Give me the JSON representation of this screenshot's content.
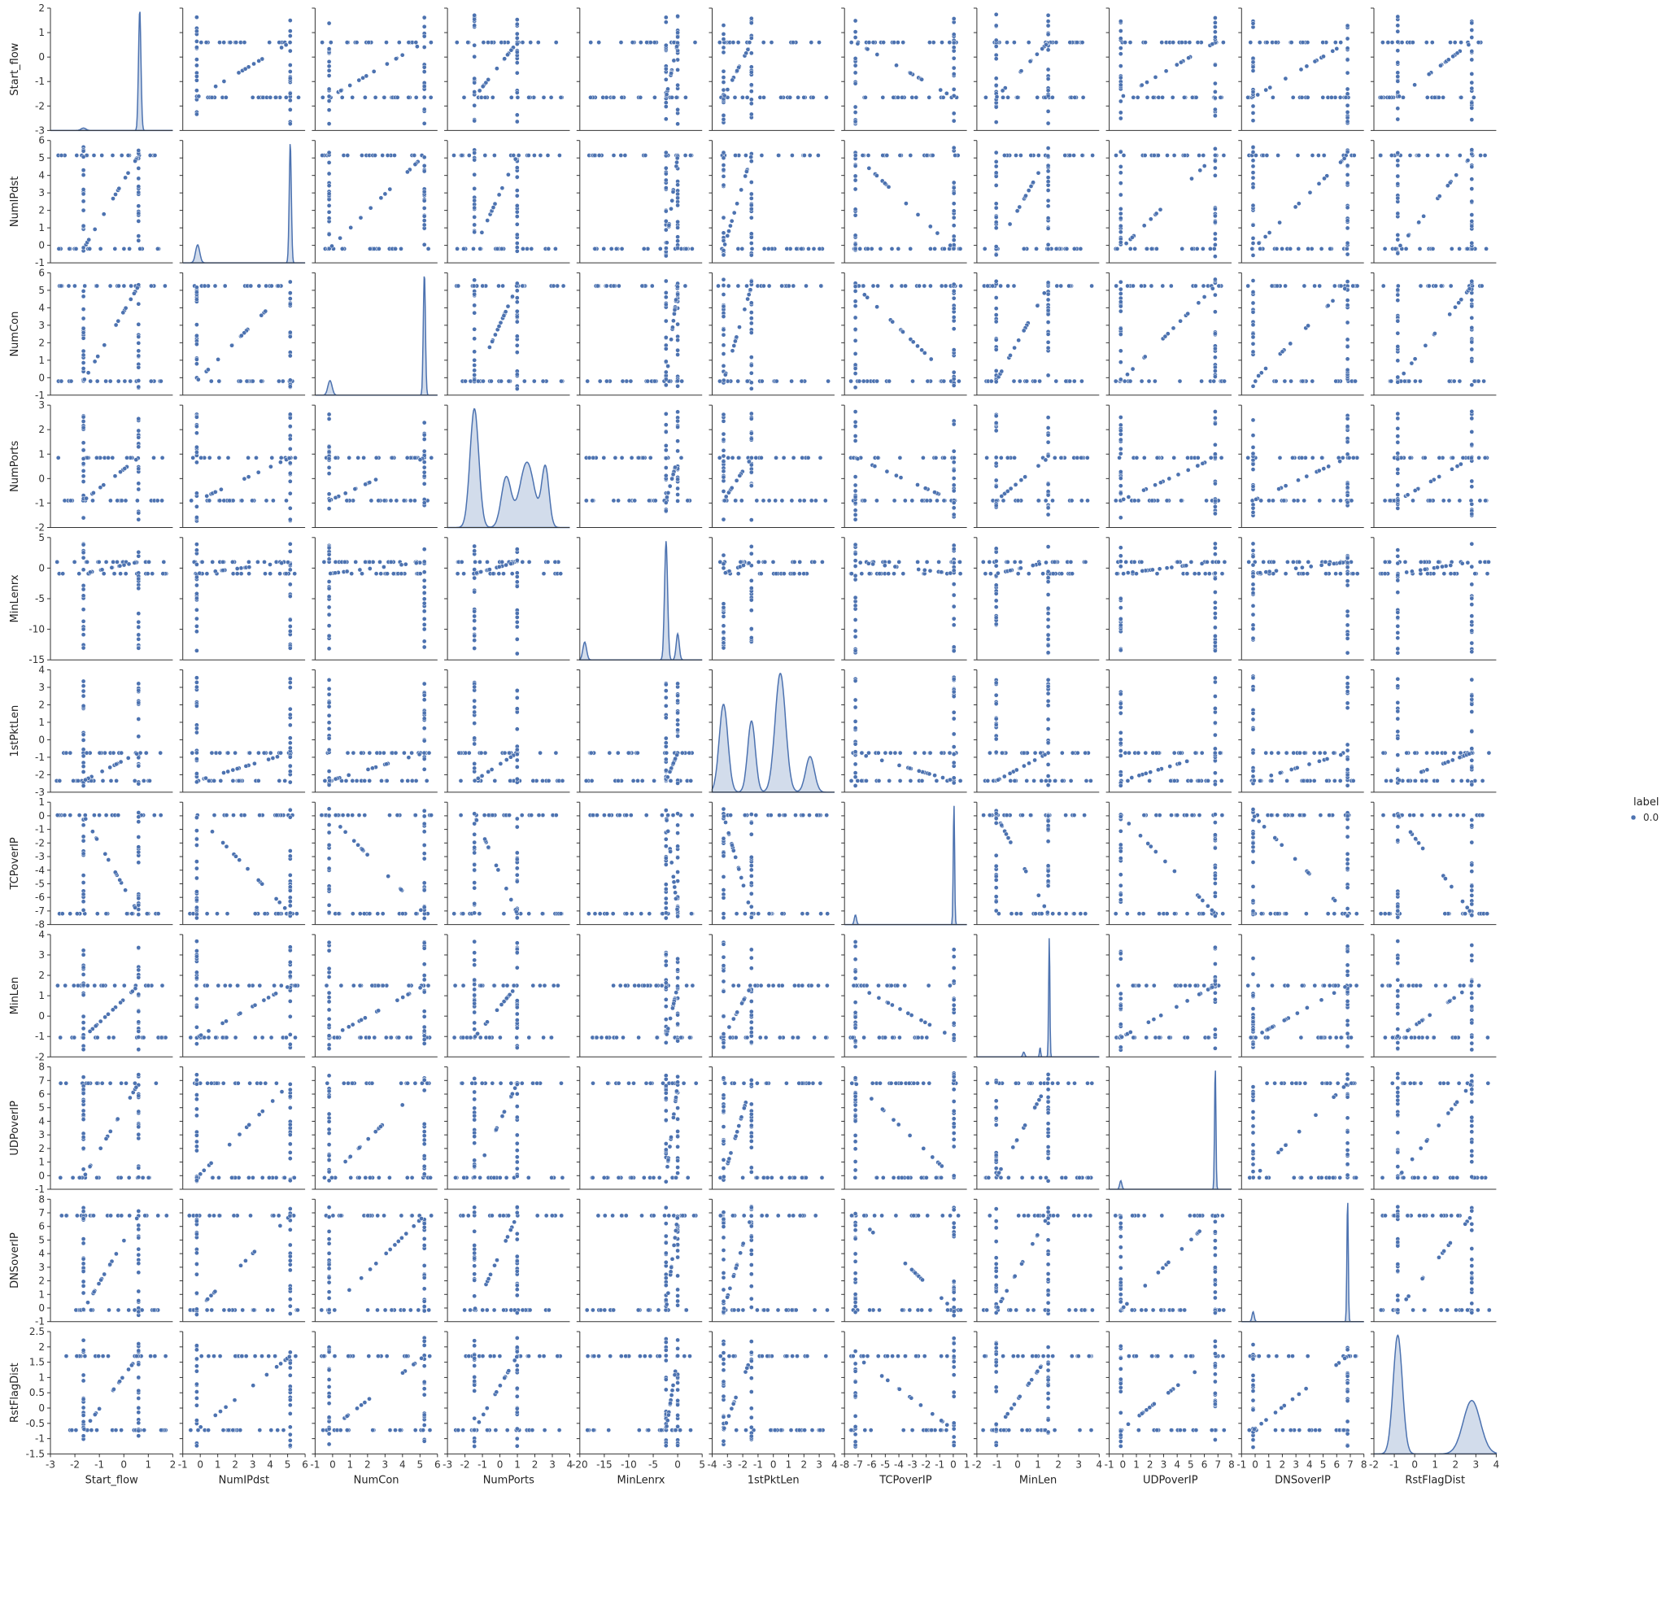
{
  "chart_data": {
    "type": "scatter",
    "layout": "pairplot",
    "variables": [
      "Start_flow",
      "NumIPdst",
      "NumCon",
      "NumPorts",
      "MinLenrx",
      "1stPktLen",
      "TCPoverIP",
      "MinLen",
      "UDPoverIP",
      "DNSoverIP",
      "RstFlagDist"
    ],
    "axes": {
      "Start_flow": {
        "lim": [
          -3,
          2
        ],
        "ticks": [
          -3,
          -2,
          -1,
          0,
          1,
          2
        ]
      },
      "NumIPdst": {
        "lim": [
          -1,
          6
        ],
        "ticks": [
          -1,
          0,
          1,
          2,
          3,
          4,
          5,
          6
        ]
      },
      "NumCon": {
        "lim": [
          -1,
          6
        ],
        "ticks": [
          -1,
          0,
          1,
          2,
          3,
          4,
          5,
          6
        ]
      },
      "NumPorts": {
        "lim": [
          -2,
          3
        ],
        "ticks": [
          -2,
          -1,
          0,
          1,
          2,
          3
        ]
      },
      "MinLenrx": {
        "lim": [
          -15,
          5
        ],
        "ticks": [
          -15,
          -10,
          -5,
          0,
          5
        ]
      },
      "1stPktLen": {
        "lim": [
          -3,
          4
        ],
        "ticks": [
          -3,
          -2,
          -1,
          0,
          1,
          2,
          3,
          4
        ]
      },
      "TCPoverIP": {
        "lim": [
          -8,
          1
        ],
        "ticks": [
          -8,
          -7,
          -6,
          -5,
          -4,
          -3,
          -2,
          -1,
          0,
          1
        ]
      },
      "MinLen": {
        "lim": [
          -2,
          4
        ],
        "ticks": [
          -2,
          -1,
          0,
          1,
          2,
          3,
          4
        ]
      },
      "UDPoverIP": {
        "lim": [
          -1,
          8
        ],
        "ticks": [
          -1,
          0,
          1,
          2,
          3,
          4,
          5,
          6,
          7,
          8
        ]
      },
      "DNSoverIP": {
        "lim": [
          -1,
          8
        ],
        "ticks": [
          -1,
          0,
          1,
          2,
          3,
          4,
          5,
          6,
          7,
          8
        ]
      },
      "RstFlagDist": {
        "lim": [
          -1.5,
          2.5
        ],
        "ticks": [
          -1.5,
          -1.0,
          -0.5,
          0.0,
          0.5,
          1.0,
          1.5,
          2.0,
          2.5
        ]
      }
    },
    "x_tick_ranges": {
      "Start_flow": [
        -3,
        2
      ],
      "NumIPdst": [
        -1,
        6
      ],
      "NumCon": [
        -1,
        6
      ],
      "NumPorts": [
        -3,
        4
      ],
      "MinLenrx": [
        -20,
        5
      ],
      "1stPktLen": [
        -4,
        4
      ],
      "TCPoverIP": [
        -8,
        1
      ],
      "MinLen": [
        -2,
        4
      ],
      "UDPoverIP": [
        -1,
        8
      ],
      "DNSoverIP": [
        -1,
        8
      ],
      "RstFlagDist": [
        -2,
        4
      ]
    },
    "diagonal": "kde",
    "diagonal_filled": [
      "NumPorts",
      "1stPktLen",
      "RstFlagDist",
      "DNSoverIP",
      "UDPoverIP",
      "TCPoverIP",
      "MinLen",
      "MinLenrx",
      "NumCon",
      "NumIPdst",
      "Start_flow"
    ],
    "modes": {
      "Start_flow": [
        {
          "c": 0.65,
          "w": 0.05,
          "h": 1.0
        },
        {
          "c": -1.65,
          "w": 0.1,
          "h": 0.02
        }
      ],
      "NumIPdst": [
        {
          "c": 5.15,
          "w": 0.06,
          "h": 1.0
        },
        {
          "c": -0.15,
          "w": 0.12,
          "h": 0.15
        }
      ],
      "NumCon": [
        {
          "c": 5.25,
          "w": 0.06,
          "h": 1.0
        },
        {
          "c": -0.15,
          "w": 0.12,
          "h": 0.12
        }
      ],
      "NumPorts": [
        {
          "c": -0.9,
          "w": 0.18,
          "h": 1.0
        },
        {
          "c": 0.4,
          "w": 0.2,
          "h": 0.42
        },
        {
          "c": 1.25,
          "w": 0.3,
          "h": 0.55
        },
        {
          "c": 2.0,
          "w": 0.15,
          "h": 0.5
        }
      ],
      "MinLenrx": [
        {
          "c": -0.9,
          "w": 0.25,
          "h": 1.0
        },
        {
          "c": 1.0,
          "w": 0.25,
          "h": 0.22
        },
        {
          "c": -14.2,
          "w": 0.3,
          "h": 0.15
        }
      ],
      "1stPktLen": [
        {
          "c": -2.35,
          "w": 0.25,
          "h": 0.74
        },
        {
          "c": -0.75,
          "w": 0.22,
          "h": 0.6
        },
        {
          "c": 0.9,
          "w": 0.3,
          "h": 1.0
        },
        {
          "c": 2.6,
          "w": 0.25,
          "h": 0.3
        }
      ],
      "TCPoverIP": [
        {
          "c": 0.05,
          "w": 0.05,
          "h": 1.0
        },
        {
          "c": -7.2,
          "w": 0.08,
          "h": 0.08
        }
      ],
      "MinLen": [
        {
          "c": 1.55,
          "w": 0.03,
          "h": 1.0
        },
        {
          "c": 1.1,
          "w": 0.03,
          "h": 0.08
        },
        {
          "c": 0.3,
          "w": 0.05,
          "h": 0.04
        }
      ],
      "UDPoverIP": [
        {
          "c": 6.8,
          "w": 0.05,
          "h": 1.0
        },
        {
          "c": -0.15,
          "w": 0.08,
          "h": 0.07
        }
      ],
      "DNSoverIP": [
        {
          "c": 6.8,
          "w": 0.05,
          "h": 1.0
        },
        {
          "c": -0.15,
          "w": 0.08,
          "h": 0.08
        }
      ],
      "RstFlagDist": [
        {
          "c": -0.72,
          "w": 0.15,
          "h": 1.0
        },
        {
          "c": 1.7,
          "w": 0.28,
          "h": 0.45
        }
      ]
    },
    "clusters": {
      "Start_flow": [
        -1.65,
        0.6,
        -2.5,
        1.5
      ],
      "NumIPdst": [
        -0.2,
        5.15
      ],
      "NumCon": [
        -0.2,
        5.25
      ],
      "NumPorts": [
        -0.9,
        0.85,
        1.3,
        2.0
      ],
      "MinLenrx": [
        -0.9,
        1.0,
        -14.2
      ],
      "1stPktLen": [
        -2.35,
        -0.75,
        0.9,
        2.6
      ],
      "TCPoverIP": [
        0.05,
        -7.2
      ],
      "MinLen": [
        -1.05,
        1.5,
        3.0
      ],
      "UDPoverIP": [
        -0.15,
        6.8
      ],
      "DNSoverIP": [
        -0.15,
        6.8
      ],
      "RstFlagDist": [
        -0.72,
        1.7
      ]
    },
    "series": [
      {
        "name": "0.0",
        "color": "#4c72b0"
      }
    ],
    "legend": {
      "title": "label",
      "placement": "center-right"
    },
    "grid": false
  }
}
